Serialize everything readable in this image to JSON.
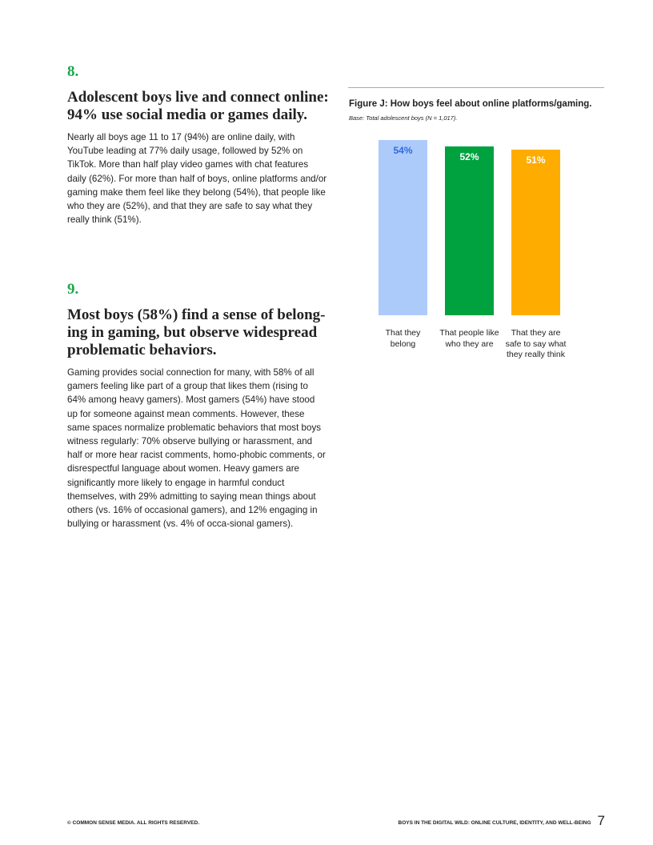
{
  "sections": [
    {
      "number": "8.",
      "heading": "Adolescent boys live and connect online: 94% use social media or games daily.",
      "body": "Nearly all boys age 11 to 17 (94%) are online daily, with YouTube leading at 77% daily usage, followed by 52% on TikTok. More than half play video games with chat features daily (62%). For more than half of boys, online platforms and/or gaming make them feel like they belong (54%), that people like who they are (52%), and that they are safe to say what they really think (51%)."
    },
    {
      "number": "9.",
      "heading": "Most boys (58%) find a sense of belong-ing in gaming, but observe widespread problematic behaviors.",
      "body": "Gaming provides social connection for many, with 58% of all gamers feeling like part of a group that likes them (rising to 64% among heavy gamers). Most gamers (54%) have stood up for someone against mean comments. However, these same spaces normalize problematic behaviors that most boys witness regularly: 70% observe bullying or harassment, and half or more hear racist comments, homo-phobic comments, or disrespectful language about women. Heavy gamers are significantly more likely to engage in harmful conduct themselves, with 29% admitting to saying mean things about others (vs. 16% of occasional gamers), and 12% engaging in bullying or harassment (vs. 4% of occa-sional gamers)."
    }
  ],
  "chart_data": {
    "type": "bar",
    "title": "Figure J: How boys feel about online platforms/gaming.",
    "subtitle": "Base: Total adolescent boys (N = 1,017).",
    "categories": [
      "That they belong",
      "That people like who they are",
      "That they are safe to say what they really think"
    ],
    "values": [
      54,
      52,
      51
    ],
    "value_labels": [
      "54%",
      "52%",
      "51%"
    ],
    "colors": [
      "#adcbfa",
      "#00a23f",
      "#ffac00"
    ],
    "label_colors": [
      "#2d6be0",
      "#ffffff",
      "#ffffff"
    ],
    "ylim": [
      0,
      54
    ],
    "grid": false
  },
  "footer": {
    "left": "© COMMON SENSE MEDIA. ALL RIGHTS RESERVED.",
    "right": "BOYS IN THE DIGITAL WILD: ONLINE CULTURE, IDENTITY, AND WELL-BEING",
    "page": "7"
  }
}
